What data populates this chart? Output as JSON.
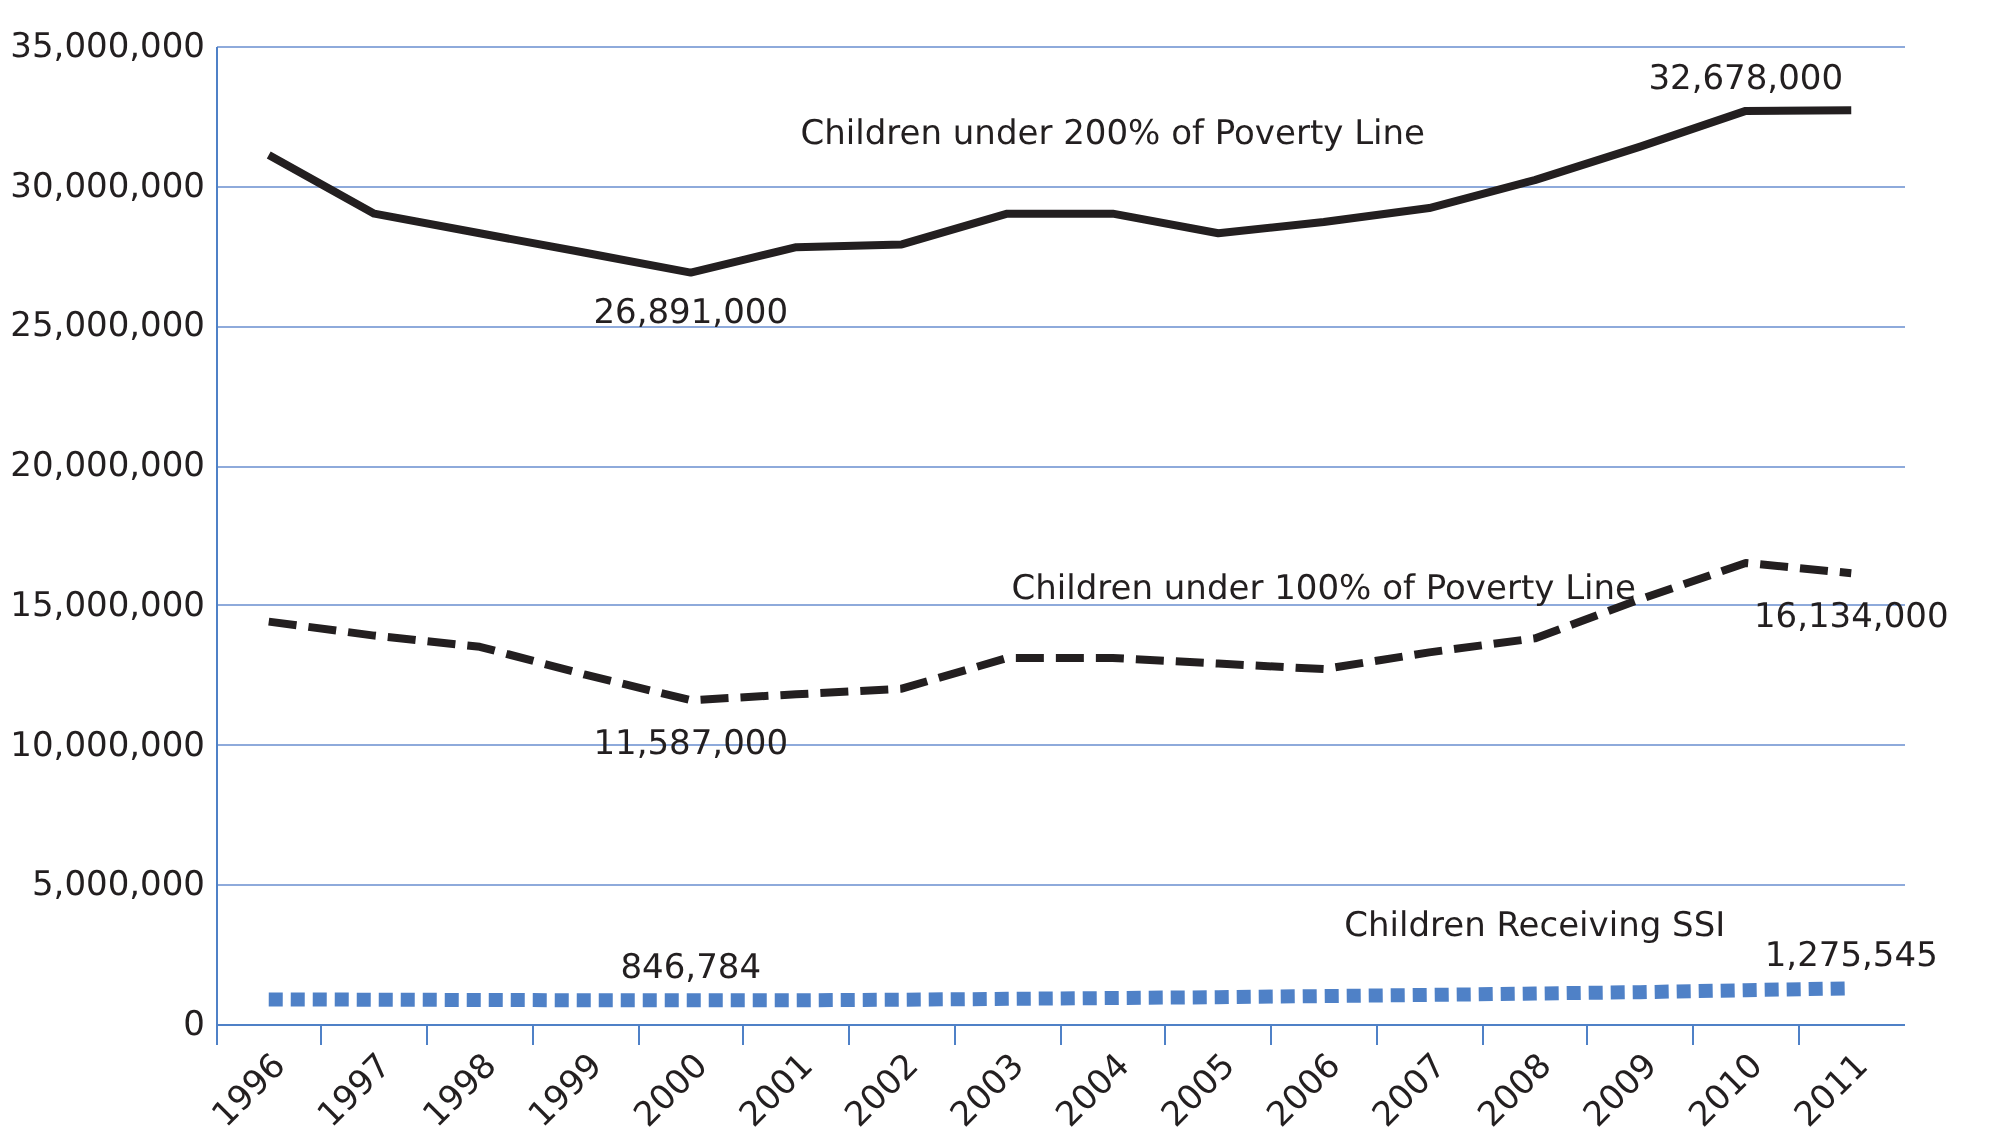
{
  "chart_data": {
    "type": "line",
    "categories": [
      "1996",
      "1997",
      "1998",
      "1999",
      "2000",
      "2001",
      "2002",
      "2003",
      "2004",
      "2005",
      "2006",
      "2007",
      "2008",
      "2009",
      "2010",
      "2011"
    ],
    "series": [
      {
        "name": "Children under 200% of Poverty Line",
        "color": "#231f20",
        "line_style": "solid",
        "values": [
          31100000,
          29000000,
          28300000,
          27600000,
          26891000,
          27800000,
          27900000,
          29000000,
          29000000,
          28300000,
          28700000,
          29200000,
          30200000,
          31400000,
          32678000,
          32700000
        ],
        "value_labels": [
          null,
          null,
          null,
          null,
          "26,891,000",
          null,
          null,
          null,
          null,
          null,
          null,
          null,
          null,
          null,
          "32,678,000",
          null
        ]
      },
      {
        "name": "Children under 100% of Poverty Line",
        "color": "#231f20",
        "line_style": "dashed",
        "values": [
          14400000,
          13900000,
          13500000,
          12500000,
          11587000,
          11800000,
          12000000,
          13100000,
          13100000,
          12900000,
          12700000,
          13300000,
          13800000,
          15200000,
          16500000,
          16134000
        ],
        "value_labels": [
          null,
          null,
          null,
          null,
          "11,587,000",
          null,
          null,
          null,
          null,
          null,
          null,
          null,
          null,
          null,
          null,
          "16,134,000"
        ]
      },
      {
        "name": "Children Receiving SSI",
        "color": "#4f81c7",
        "line_style": "dotted",
        "values": [
          880000,
          870000,
          860000,
          850000,
          846784,
          850000,
          870000,
          900000,
          930000,
          960000,
          1000000,
          1040000,
          1090000,
          1140000,
          1210000,
          1275545
        ],
        "value_labels": [
          null,
          null,
          null,
          null,
          "846,784",
          null,
          null,
          null,
          null,
          null,
          null,
          null,
          null,
          null,
          null,
          "1,275,545"
        ]
      }
    ],
    "ylim": [
      0,
      35000000
    ],
    "yticks": [
      0,
      {
        "value": 5000000,
        "label": "5,000,000"
      },
      {
        "value": 10000000,
        "label": "10,000,000"
      },
      {
        "value": 15000000,
        "label": "15,000,000"
      },
      {
        "value": 20000000,
        "label": "20,000,000"
      },
      {
        "value": 25000000,
        "label": "25,000,000"
      },
      {
        "value": 30000000,
        "label": "30,000,000"
      },
      {
        "value": 35000000,
        "label": "35,000,000"
      }
    ],
    "grid": "y",
    "marker": "none"
  }
}
